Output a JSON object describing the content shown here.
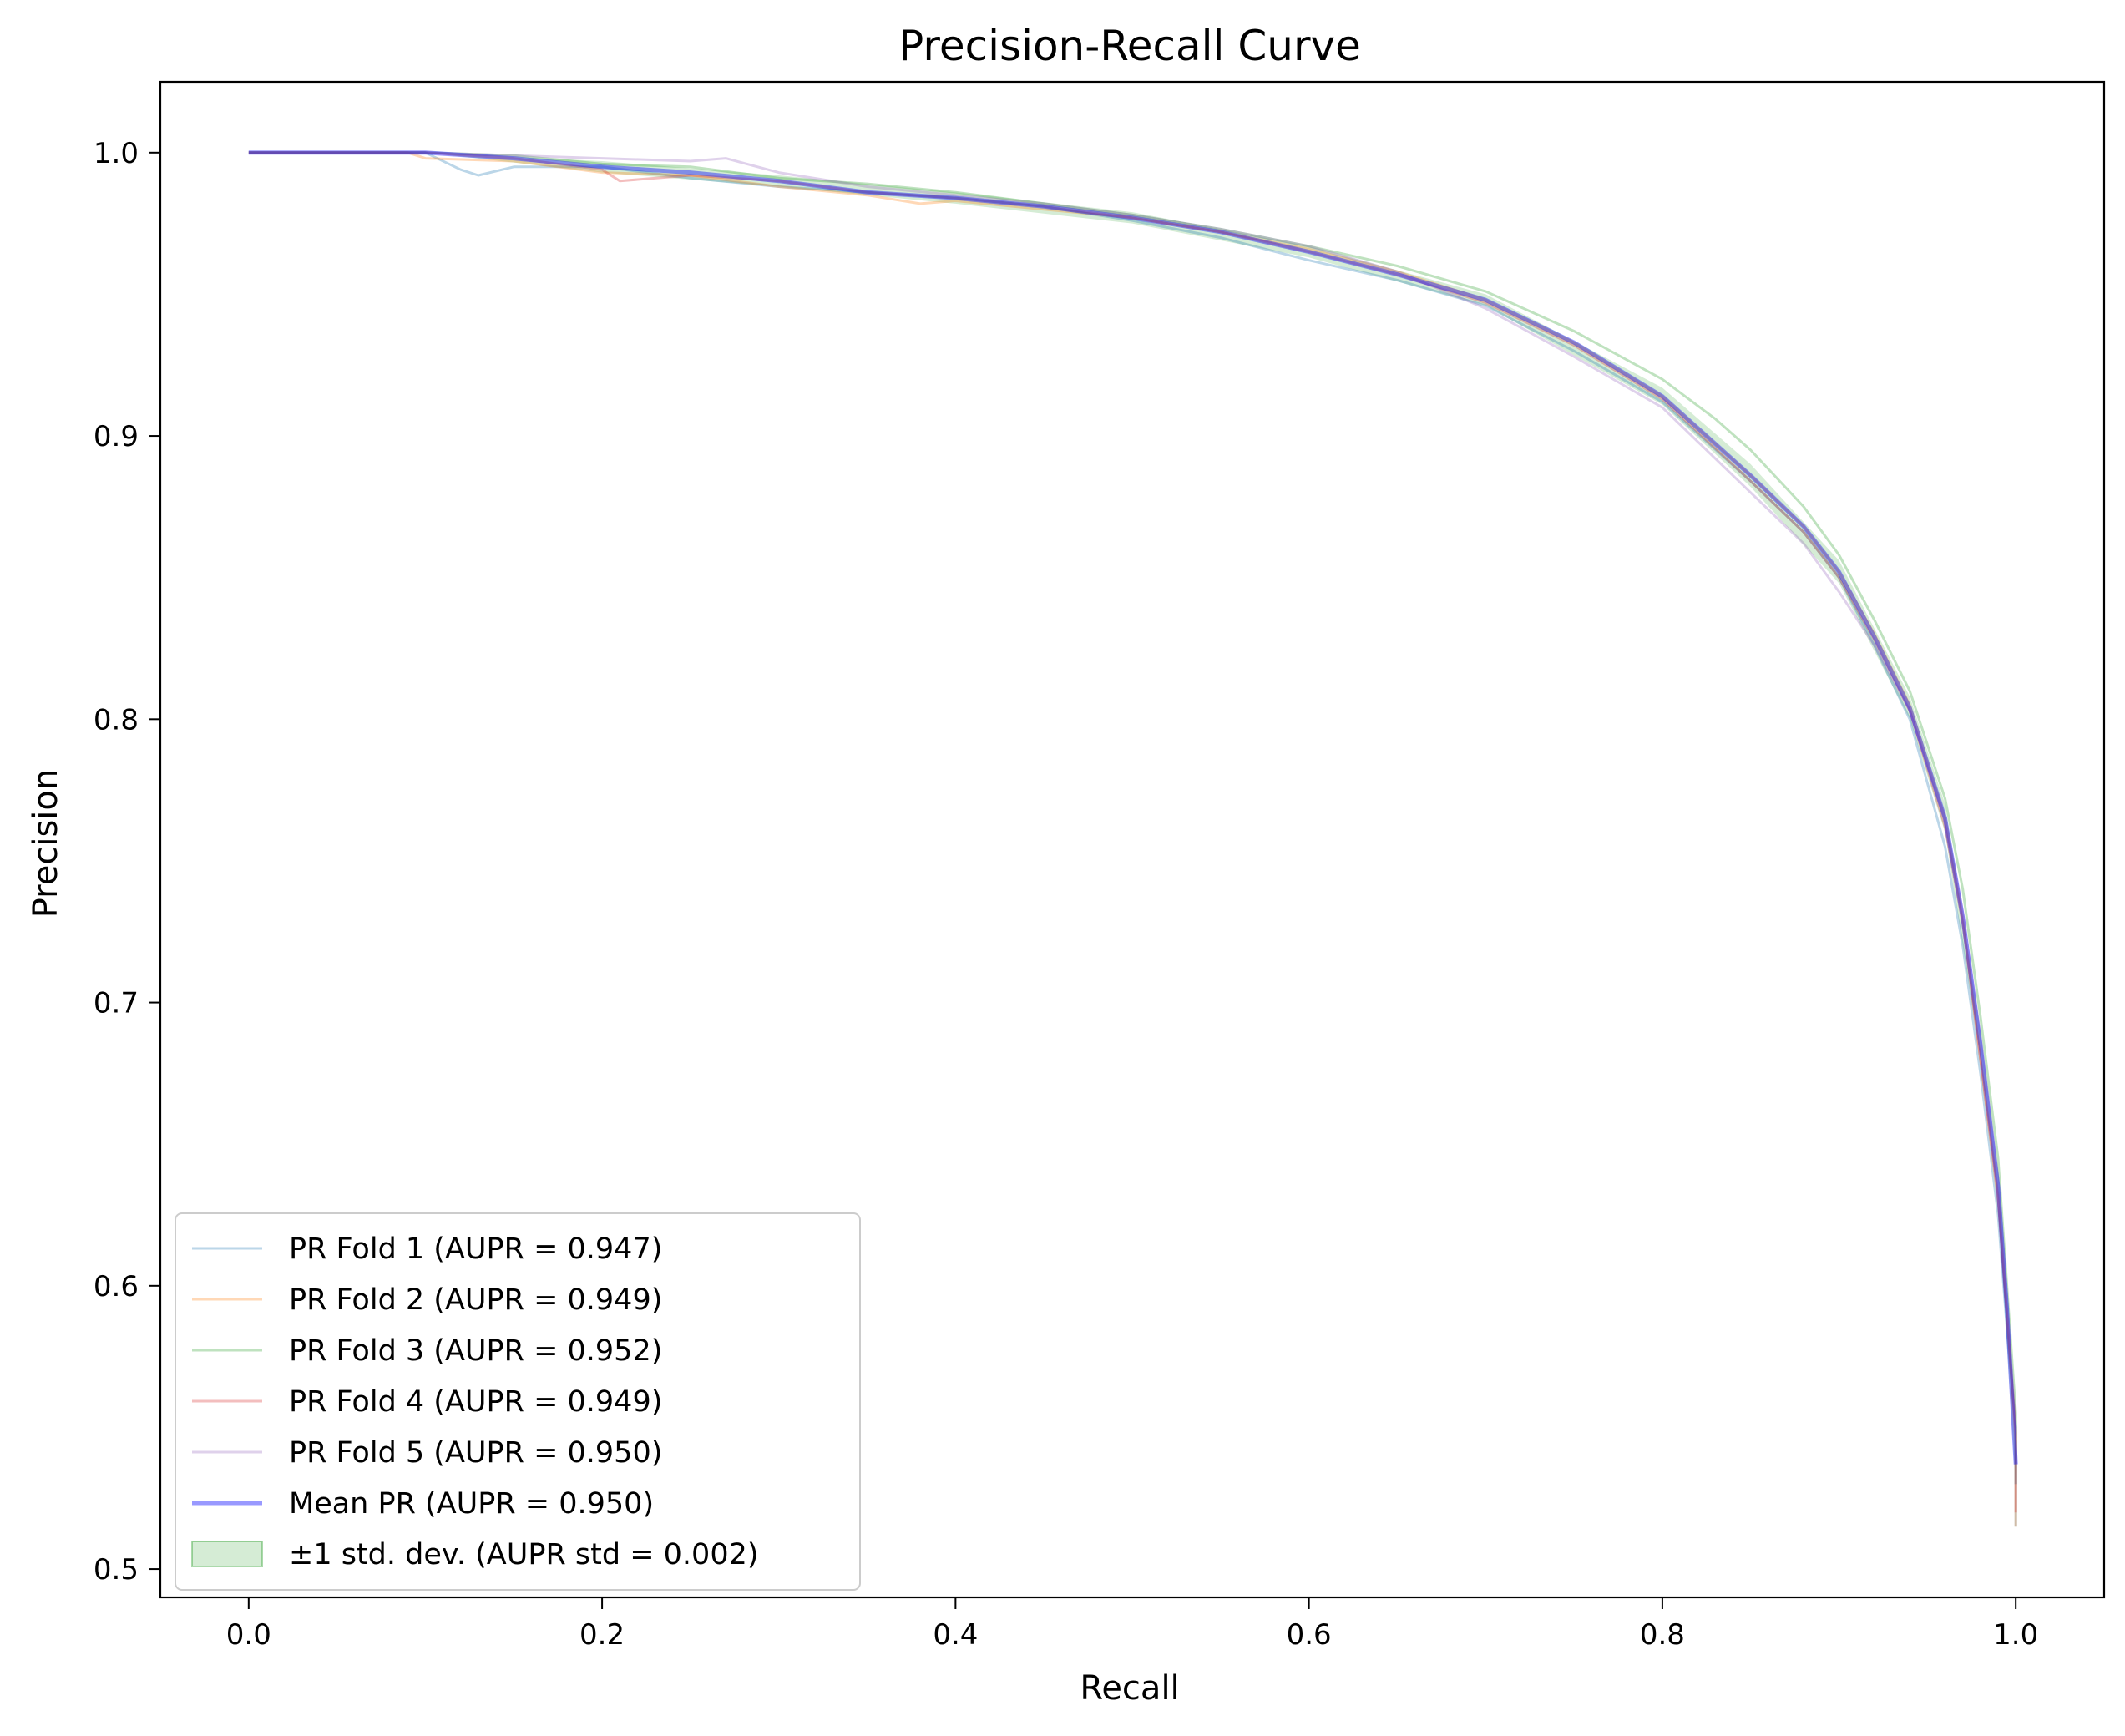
{
  "chart_data": {
    "type": "line",
    "title": "Precision-Recall Curve",
    "xlabel": "Recall",
    "ylabel": "Precision",
    "xlim": [
      -0.05,
      1.05
    ],
    "ylim": [
      0.49,
      1.025
    ],
    "xticks": [
      0.0,
      0.2,
      0.4,
      0.6,
      0.8,
      1.0
    ],
    "xtick_labels": [
      "0.0",
      "0.2",
      "0.4",
      "0.6",
      "0.8",
      "1.0"
    ],
    "yticks": [
      0.5,
      0.6,
      0.7,
      0.8,
      0.9,
      1.0
    ],
    "ytick_labels": [
      "0.5",
      "0.6",
      "0.7",
      "0.8",
      "0.9",
      "1.0"
    ],
    "grid": false,
    "legend_position": "lower-left",
    "series": [
      {
        "name": "PR Fold 1 (AUPR = 0.947)",
        "color": "#1f77b4",
        "opacity": 0.3,
        "x": [
          0.0,
          0.05,
          0.1,
          0.12,
          0.13,
          0.15,
          0.2,
          0.25,
          0.3,
          0.35,
          0.4,
          0.45,
          0.5,
          0.55,
          0.6,
          0.65,
          0.7,
          0.75,
          0.8,
          0.85,
          0.88,
          0.9,
          0.92,
          0.94,
          0.96,
          0.97,
          0.98,
          0.99,
          0.995,
          1.0,
          1.0
        ],
        "y": [
          1.0,
          1.0,
          1.0,
          0.994,
          0.992,
          0.995,
          0.995,
          0.991,
          0.988,
          0.986,
          0.984,
          0.981,
          0.976,
          0.97,
          0.962,
          0.955,
          0.946,
          0.93,
          0.912,
          0.884,
          0.866,
          0.85,
          0.826,
          0.8,
          0.755,
          0.72,
          0.675,
          0.625,
          0.585,
          0.55,
          0.515
        ]
      },
      {
        "name": "PR Fold 2 (AUPR = 0.949)",
        "color": "#ff7f0e",
        "opacity": 0.3,
        "x": [
          0.0,
          0.05,
          0.09,
          0.1,
          0.15,
          0.2,
          0.25,
          0.3,
          0.35,
          0.38,
          0.4,
          0.45,
          0.5,
          0.55,
          0.6,
          0.65,
          0.7,
          0.75,
          0.8,
          0.85,
          0.88,
          0.9,
          0.92,
          0.94,
          0.96,
          0.97,
          0.98,
          0.99,
          0.995,
          1.0,
          1.0
        ],
        "y": [
          1.0,
          1.0,
          1.0,
          0.998,
          0.997,
          0.993,
          0.992,
          0.988,
          0.985,
          0.982,
          0.983,
          0.98,
          0.977,
          0.972,
          0.966,
          0.958,
          0.948,
          0.933,
          0.914,
          0.886,
          0.868,
          0.852,
          0.83,
          0.805,
          0.765,
          0.73,
          0.68,
          0.63,
          0.59,
          0.545,
          0.515
        ]
      },
      {
        "name": "PR Fold 3 (AUPR = 0.952)",
        "color": "#2ca02c",
        "opacity": 0.3,
        "x": [
          0.0,
          0.05,
          0.1,
          0.15,
          0.2,
          0.25,
          0.3,
          0.35,
          0.4,
          0.45,
          0.5,
          0.55,
          0.6,
          0.65,
          0.7,
          0.75,
          0.8,
          0.83,
          0.85,
          0.88,
          0.9,
          0.92,
          0.94,
          0.96,
          0.97,
          0.98,
          0.99,
          0.995,
          1.0,
          1.0
        ],
        "y": [
          1.0,
          1.0,
          1.0,
          0.999,
          0.996,
          0.995,
          0.991,
          0.989,
          0.986,
          0.982,
          0.978,
          0.973,
          0.967,
          0.96,
          0.951,
          0.937,
          0.92,
          0.906,
          0.895,
          0.875,
          0.858,
          0.835,
          0.81,
          0.772,
          0.74,
          0.695,
          0.645,
          0.6,
          0.555,
          0.53
        ]
      },
      {
        "name": "PR Fold 4 (AUPR = 0.949)",
        "color": "#d62728",
        "opacity": 0.3,
        "x": [
          0.0,
          0.05,
          0.1,
          0.15,
          0.2,
          0.21,
          0.25,
          0.3,
          0.35,
          0.4,
          0.45,
          0.5,
          0.55,
          0.6,
          0.65,
          0.7,
          0.75,
          0.8,
          0.85,
          0.88,
          0.9,
          0.92,
          0.94,
          0.96,
          0.97,
          0.98,
          0.99,
          0.995,
          1.0,
          1.0
        ],
        "y": [
          1.0,
          1.0,
          1.0,
          0.998,
          0.994,
          0.99,
          0.992,
          0.99,
          0.986,
          0.984,
          0.981,
          0.977,
          0.972,
          0.965,
          0.957,
          0.947,
          0.932,
          0.913,
          0.884,
          0.866,
          0.85,
          0.828,
          0.803,
          0.762,
          0.728,
          0.68,
          0.632,
          0.59,
          0.548,
          0.52
        ]
      },
      {
        "name": "PR Fold 5 (AUPR = 0.950)",
        "color": "#9467bd",
        "opacity": 0.3,
        "x": [
          0.0,
          0.05,
          0.1,
          0.15,
          0.2,
          0.25,
          0.27,
          0.3,
          0.35,
          0.4,
          0.45,
          0.5,
          0.55,
          0.6,
          0.65,
          0.7,
          0.75,
          0.8,
          0.85,
          0.88,
          0.9,
          0.92,
          0.94,
          0.96,
          0.97,
          0.98,
          0.99,
          0.995,
          1.0,
          1.0
        ],
        "y": [
          1.0,
          1.0,
          1.0,
          0.999,
          0.998,
          0.997,
          0.998,
          0.993,
          0.988,
          0.985,
          0.982,
          0.978,
          0.973,
          0.967,
          0.958,
          0.945,
          0.928,
          0.91,
          0.88,
          0.862,
          0.845,
          0.826,
          0.803,
          0.765,
          0.732,
          0.688,
          0.638,
          0.595,
          0.55,
          0.53
        ]
      },
      {
        "name": "Mean PR (AUPR = 0.950)",
        "color": "#0000ff",
        "opacity": 0.4,
        "x": [
          0.0,
          0.05,
          0.1,
          0.15,
          0.2,
          0.25,
          0.3,
          0.35,
          0.4,
          0.45,
          0.5,
          0.55,
          0.6,
          0.65,
          0.7,
          0.75,
          0.8,
          0.85,
          0.88,
          0.9,
          0.92,
          0.94,
          0.96,
          0.97,
          0.98,
          0.99,
          0.995,
          1.0
        ],
        "y": [
          1.0,
          1.0,
          1.0,
          0.998,
          0.995,
          0.993,
          0.99,
          0.986,
          0.984,
          0.981,
          0.977,
          0.972,
          0.965,
          0.957,
          0.948,
          0.933,
          0.914,
          0.886,
          0.868,
          0.852,
          0.829,
          0.804,
          0.765,
          0.73,
          0.685,
          0.635,
          0.592,
          0.537
        ]
      }
    ],
    "std_band": {
      "name": "±1 std. dev. (AUPR std = 0.002)",
      "color": "#2ca02c",
      "opacity": 0.2,
      "x": [
        0.0,
        0.1,
        0.2,
        0.3,
        0.4,
        0.5,
        0.6,
        0.7,
        0.8,
        0.85,
        0.9,
        0.94,
        0.96,
        0.98,
        0.99,
        1.0
      ],
      "upper": [
        1.0,
        1.0,
        0.997,
        0.992,
        0.986,
        0.979,
        0.967,
        0.95,
        0.917,
        0.89,
        0.856,
        0.808,
        0.77,
        0.69,
        0.64,
        0.545
      ],
      "lower": [
        1.0,
        1.0,
        0.993,
        0.988,
        0.982,
        0.975,
        0.963,
        0.946,
        0.911,
        0.882,
        0.848,
        0.8,
        0.76,
        0.68,
        0.63,
        0.529
      ]
    }
  }
}
